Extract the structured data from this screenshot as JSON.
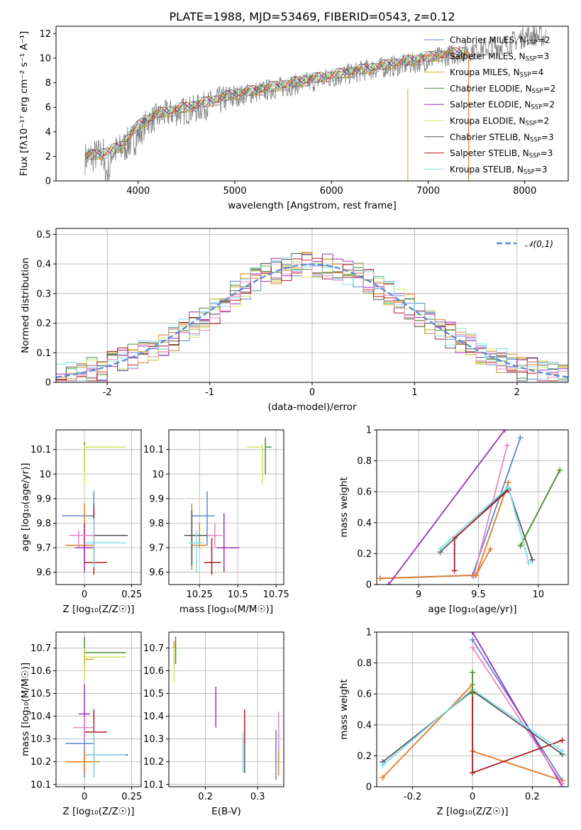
{
  "figure_title": "PLATE=1988, MJD=53469, FIBERID=0543, z=0.12",
  "models": [
    {
      "name": "Chabrier MILES",
      "nssp": "2",
      "color": "#5b86d0"
    },
    {
      "name": "Salpeter MILES",
      "nssp": "3",
      "color": "#e07b27"
    },
    {
      "name": "Kroupa MILES",
      "nssp": "4",
      "color": "#c6a41a"
    },
    {
      "name": "Chabrier ELODIE",
      "nssp": "2",
      "color": "#4a8f3a"
    },
    {
      "name": "Salpeter ELODIE",
      "nssp": "2",
      "color": "#9b30b8"
    },
    {
      "name": "Kroupa ELODIE",
      "nssp": "2",
      "color": "#d6e35a"
    },
    {
      "name": "Chabrier STELIB",
      "nssp": "3",
      "color": "#555555"
    },
    {
      "name": "Salpeter STELIB",
      "nssp": "3",
      "color": "#b01c22"
    },
    {
      "name": "Kroupa STELIB",
      "nssp": "3",
      "color": "#80dde8"
    }
  ],
  "extra_colors": {
    "data": "#808080",
    "pink": "#e986c0",
    "gaussian": "#5b8bd6"
  },
  "chart_data": [
    {
      "id": "spectrum",
      "type": "line",
      "xlabel": "wavelength [Angstrom, rest frame]",
      "ylabel": "Flux [fλ10⁻¹⁷ erg cm⁻² s⁻¹ A⁻¹]",
      "xlim": [
        3150,
        8450
      ],
      "ylim": [
        0,
        12.6
      ],
      "xticks": [
        4000,
        5000,
        6000,
        7000,
        8000
      ],
      "yticks": [
        0,
        2,
        4,
        6,
        8,
        10,
        12
      ],
      "data_series": {
        "name": "data",
        "x": [
          3450,
          3600,
          3800,
          4000,
          4100,
          4300,
          4600,
          4900,
          5200,
          5600,
          6000,
          6400,
          6800,
          7200,
          7500,
          7800,
          8050,
          8200
        ],
        "y": [
          2.0,
          2.3,
          2.6,
          3.8,
          5.0,
          5.6,
          6.0,
          6.8,
          7.3,
          7.9,
          8.5,
          9.2,
          9.6,
          10.3,
          10.8,
          11.2,
          12.0,
          11.8
        ]
      },
      "model_x": [
        3450,
        3600,
        3800,
        4000,
        4200,
        4500,
        4800,
        5000,
        5300,
        5600,
        6000,
        6400,
        6800,
        7100,
        7400
      ],
      "model_y": [
        2.0,
        2.2,
        2.7,
        4.5,
        5.5,
        6.0,
        6.6,
        7.1,
        7.5,
        8.0,
        8.6,
        9.2,
        9.8,
        10.2,
        10.6
      ],
      "grid": false,
      "legend_position": "top-right"
    },
    {
      "id": "residuals",
      "type": "histogram",
      "xlabel": "(data-model)/error",
      "ylabel": "Normed distribution",
      "xlim": [
        -2.5,
        2.5
      ],
      "ylim": [
        0,
        0.52
      ],
      "xticks": [
        -2,
        -1,
        0,
        1,
        2
      ],
      "yticks": [
        0.0,
        0.1,
        0.2,
        0.3,
        0.4,
        0.5
      ],
      "bin_width": 0.1,
      "gaussian_label": "𝒩(0,1)",
      "grid": true,
      "legend_position": "top-right"
    },
    {
      "id": "age-vs-Z",
      "type": "errorbar",
      "xlabel": "Z [log₁₀(Z/Z☉)]",
      "ylabel": "age  [log₁₀(age/yr)]",
      "xlim": [
        -0.15,
        0.3
      ],
      "ylim": [
        9.55,
        10.18
      ],
      "xticks": [
        0.0,
        0.25
      ],
      "yticks": [
        9.6,
        9.7,
        9.8,
        9.9,
        10.0,
        10.1
      ],
      "grid": true,
      "points": [
        {
          "x": 0.05,
          "y": 9.83,
          "xl": 0.17,
          "xh": 0.0,
          "yl": 0.12,
          "yh": 0.1,
          "c": 0
        },
        {
          "x": 0.0,
          "y": 9.71,
          "xl": 0.1,
          "xh": 0.05,
          "yl": 0.1,
          "yh": 0.17,
          "c": 1
        },
        {
          "x": 0.0,
          "y": 9.75,
          "xl": 0.0,
          "xh": 0.05,
          "yl": 0.05,
          "yh": 0.05,
          "c": 2
        },
        {
          "x": 0.0,
          "y": 10.11,
          "xl": 0.0,
          "xh": 0.22,
          "yl": 0.1,
          "yh": 0.02,
          "c": 3
        },
        {
          "x": 0.0,
          "y": 9.7,
          "xl": 0.05,
          "xh": 0.05,
          "yl": 0.1,
          "yh": 0.1,
          "c": 4
        },
        {
          "x": 0.0,
          "y": 10.11,
          "xl": 0.0,
          "xh": 0.22,
          "yl": 0.15,
          "yh": 0.01,
          "c": 5
        },
        {
          "x": 0.05,
          "y": 9.75,
          "xl": 0.05,
          "xh": 0.18,
          "yl": 0.12,
          "yh": 0.13,
          "c": 6
        },
        {
          "x": 0.05,
          "y": 9.64,
          "xl": 0.05,
          "xh": 0.07,
          "yl": 0.05,
          "yh": 0.22,
          "c": 7
        },
        {
          "x": 0.05,
          "y": 9.72,
          "xl": 0.05,
          "xh": 0.17,
          "yl": 0.1,
          "yh": 0.1,
          "c": 8
        },
        {
          "x": -0.03,
          "y": 9.75,
          "xl": 0.05,
          "xh": 0.08,
          "yl": 0.05,
          "yh": 0.02,
          "c": 9
        }
      ]
    },
    {
      "id": "age-vs-mass",
      "type": "errorbar",
      "xlabel": "mass [log₁₀(M/M☉)]",
      "ylabel": "",
      "xlim": [
        10.05,
        10.8
      ],
      "ylim": [
        9.55,
        10.18
      ],
      "xticks": [
        10.25,
        10.5,
        10.75
      ],
      "yticks": [
        9.6,
        9.7,
        9.8,
        9.9,
        10.0,
        10.1
      ],
      "grid": true,
      "points": [
        {
          "x": 10.3,
          "y": 9.83,
          "xl": 0.1,
          "xh": 0.05,
          "yl": 0.12,
          "yh": 0.1,
          "c": 0
        },
        {
          "x": 10.2,
          "y": 9.71,
          "xl": 0.0,
          "xh": 0.1,
          "yl": 0.1,
          "yh": 0.17,
          "c": 1
        },
        {
          "x": 10.25,
          "y": 9.75,
          "xl": 0.05,
          "xh": 0.05,
          "yl": 0.05,
          "yh": 0.05,
          "c": 2
        },
        {
          "x": 10.68,
          "y": 10.11,
          "xl": 0.0,
          "xh": 0.04,
          "yl": 0.11,
          "yh": 0.04,
          "c": 3
        },
        {
          "x": 10.41,
          "y": 9.7,
          "xl": 0.05,
          "xh": 0.1,
          "yl": 0.1,
          "yh": 0.14,
          "c": 4
        },
        {
          "x": 10.66,
          "y": 10.11,
          "xl": 0.1,
          "xh": 0.0,
          "yl": 0.15,
          "yh": 0.01,
          "c": 5
        },
        {
          "x": 10.2,
          "y": 9.75,
          "xl": 0.05,
          "xh": 0.15,
          "yl": 0.12,
          "yh": 0.1,
          "c": 6
        },
        {
          "x": 10.33,
          "y": 9.64,
          "xl": 0.05,
          "xh": 0.06,
          "yl": 0.05,
          "yh": 0.1,
          "c": 7
        },
        {
          "x": 10.23,
          "y": 9.72,
          "xl": 0.05,
          "xh": 0.05,
          "yl": 0.12,
          "yh": 0.05,
          "c": 8
        },
        {
          "x": 10.35,
          "y": 9.75,
          "xl": 0.05,
          "xh": 0.05,
          "yl": 0.05,
          "yh": 0.05,
          "c": 9
        }
      ]
    },
    {
      "id": "weight-vs-age",
      "type": "line",
      "xlabel": "age  [log₁₀(age/yr)]",
      "ylabel": "mass weight",
      "xlim": [
        8.65,
        10.25
      ],
      "ylim": [
        0,
        1.0
      ],
      "xticks": [
        9.0,
        9.5,
        10.0
      ],
      "yticks": [
        0.0,
        0.2,
        0.4,
        0.6,
        0.8,
        1.0
      ],
      "grid": true,
      "series": [
        {
          "c": 0,
          "x": [
            8.68,
            9.45,
            9.85
          ],
          "y": [
            0.04,
            0.06,
            0.95
          ]
        },
        {
          "c": 1,
          "x": [
            8.68,
            9.48,
            9.75
          ],
          "y": [
            0.04,
            0.06,
            0.66
          ]
        },
        {
          "c": 5,
          "x": [
            9.86,
            10.18
          ],
          "y": [
            0.26,
            0.74
          ]
        },
        {
          "c": 3,
          "x": [
            9.85,
            10.18
          ],
          "y": [
            0.25,
            0.74
          ]
        },
        {
          "c": 4,
          "x": [
            8.75,
            9.72
          ],
          "y": [
            0.0,
            1.0
          ]
        },
        {
          "c": 9,
          "x": [
            9.46,
            9.74
          ],
          "y": [
            0.05,
            0.9
          ]
        },
        {
          "c": 6,
          "x": [
            9.18,
            9.75,
            9.95
          ],
          "y": [
            0.21,
            0.62,
            0.16
          ]
        },
        {
          "c": 7,
          "x": [
            9.3,
            9.3,
            9.75
          ],
          "y": [
            0.09,
            0.3,
            0.61
          ]
        },
        {
          "c": 8,
          "x": [
            9.18,
            9.75,
            9.92
          ],
          "y": [
            0.23,
            0.63,
            0.14
          ]
        },
        {
          "c": 1,
          "x": [
            9.48,
            9.6
          ],
          "y": [
            0.06,
            0.23
          ]
        }
      ]
    },
    {
      "id": "mass-vs-Z",
      "type": "errorbar",
      "xlabel": "Z [log₁₀(Z/Z☉)]",
      "ylabel": "mass [log₁₀(M/M☉)]",
      "xlim": [
        -0.15,
        0.3
      ],
      "ylim": [
        10.09,
        10.77
      ],
      "xticks": [
        0.0,
        0.25
      ],
      "yticks": [
        10.1,
        10.2,
        10.3,
        10.4,
        10.5,
        10.6,
        10.7
      ],
      "grid": true,
      "points": [
        {
          "x": 0.0,
          "y": 10.28,
          "xl": 0.1,
          "xh": 0.05,
          "yl": 0.15,
          "yh": 0.05,
          "c": 0
        },
        {
          "x": 0.0,
          "y": 10.2,
          "xl": 0.1,
          "xh": 0.08,
          "yl": 0.05,
          "yh": 0.05,
          "c": 1
        },
        {
          "x": 0.0,
          "y": 10.65,
          "xl": 0.0,
          "xh": 0.05,
          "yl": 0.05,
          "yh": 0.05,
          "c": 2
        },
        {
          "x": 0.0,
          "y": 10.68,
          "xl": 0.0,
          "xh": 0.22,
          "yl": 0.05,
          "yh": 0.07,
          "c": 3
        },
        {
          "x": 0.0,
          "y": 10.41,
          "xl": 0.03,
          "xh": 0.03,
          "yl": 0.1,
          "yh": 0.13,
          "c": 4
        },
        {
          "x": 0.0,
          "y": 10.66,
          "xl": 0.0,
          "xh": 0.22,
          "yl": 0.1,
          "yh": 0.04,
          "c": 5
        },
        {
          "x": 0.05,
          "y": 10.23,
          "xl": 0.05,
          "xh": 0.18,
          "yl": 0.1,
          "yh": 0.07,
          "c": 6
        },
        {
          "x": 0.05,
          "y": 10.33,
          "xl": 0.05,
          "xh": 0.07,
          "yl": 0.05,
          "yh": 0.1,
          "c": 7
        },
        {
          "x": 0.05,
          "y": 10.23,
          "xl": 0.05,
          "xh": 0.17,
          "yl": 0.1,
          "yh": 0.1,
          "c": 8
        },
        {
          "x": 0.0,
          "y": 10.35,
          "xl": 0.06,
          "xh": 0.05,
          "yl": 0.05,
          "yh": 0.05,
          "c": 9
        }
      ]
    },
    {
      "id": "mass-vs-EBV",
      "type": "errorbar",
      "xlabel": "E(B-V)",
      "ylabel": "",
      "xlim": [
        0.13,
        0.35
      ],
      "ylim": [
        10.09,
        10.77
      ],
      "xticks": [
        0.2,
        0.3
      ],
      "yticks": [
        10.1,
        10.2,
        10.3,
        10.4,
        10.5,
        10.6,
        10.7
      ],
      "grid": true,
      "points": [
        {
          "x": 0.335,
          "y": 10.25,
          "xl": 0.0,
          "xh": 0.0,
          "yl": 0.13,
          "yh": 0.09,
          "c": 0
        },
        {
          "x": 0.34,
          "y": 10.25,
          "xl": 0.0,
          "xh": 0.0,
          "yl": 0.11,
          "yh": 0.08,
          "c": 1
        },
        {
          "x": 0.14,
          "y": 10.68,
          "xl": 0.0,
          "xh": 0.0,
          "yl": 0.05,
          "yh": 0.05,
          "c": 2
        },
        {
          "x": 0.143,
          "y": 10.68,
          "xl": 0.0,
          "xh": 0.0,
          "yl": 0.05,
          "yh": 0.07,
          "c": 3
        },
        {
          "x": 0.22,
          "y": 10.44,
          "xl": 0.0,
          "xh": 0.0,
          "yl": 0.09,
          "yh": 0.09,
          "c": 4
        },
        {
          "x": 0.14,
          "y": 10.65,
          "xl": 0.0,
          "xh": 0.0,
          "yl": 0.1,
          "yh": 0.05,
          "c": 5
        },
        {
          "x": 0.275,
          "y": 10.25,
          "xl": 0.0,
          "xh": 0.0,
          "yl": 0.1,
          "yh": 0.07,
          "c": 6
        },
        {
          "x": 0.275,
          "y": 10.33,
          "xl": 0.0,
          "xh": 0.0,
          "yl": 0.05,
          "yh": 0.1,
          "c": 7
        },
        {
          "x": 0.272,
          "y": 10.25,
          "xl": 0.0,
          "xh": 0.0,
          "yl": 0.1,
          "yh": 0.08,
          "c": 8
        },
        {
          "x": 0.34,
          "y": 10.35,
          "xl": 0.0,
          "xh": 0.0,
          "yl": 0.1,
          "yh": 0.07,
          "c": 9
        }
      ]
    },
    {
      "id": "weight-vs-Z",
      "type": "line",
      "xlabel": "Z [log₁₀(Z/Z☉)]",
      "ylabel": "mass weight",
      "xlim": [
        -0.32,
        0.32
      ],
      "ylim": [
        0,
        1.0
      ],
      "xticks": [
        -0.2,
        0.0,
        0.2
      ],
      "yticks": [
        0.0,
        0.2,
        0.4,
        0.6,
        0.8,
        1.0
      ],
      "grid": true,
      "series": [
        {
          "c": 0,
          "x": [
            0.0,
            0.3
          ],
          "y": [
            0.95,
            0.04
          ]
        },
        {
          "c": 1,
          "x": [
            -0.3,
            0.0,
            0.0,
            0.3
          ],
          "y": [
            0.06,
            0.66,
            0.23,
            0.04
          ]
        },
        {
          "c": 4,
          "x": [
            0.0,
            0.3
          ],
          "y": [
            1.0,
            0.0
          ]
        },
        {
          "c": 9,
          "x": [
            0.0,
            0.3
          ],
          "y": [
            0.9,
            0.02
          ]
        },
        {
          "c": 6,
          "x": [
            -0.3,
            0.0,
            0.3
          ],
          "y": [
            0.16,
            0.62,
            0.21
          ]
        },
        {
          "c": 7,
          "x": [
            0.0,
            0.0,
            0.3
          ],
          "y": [
            0.61,
            0.09,
            0.3
          ]
        },
        {
          "c": 8,
          "x": [
            -0.3,
            0.0,
            0.3
          ],
          "y": [
            0.14,
            0.63,
            0.23
          ]
        },
        {
          "c": 5,
          "x": [
            0.0,
            0.0
          ],
          "y": [
            0.74,
            0.62
          ]
        },
        {
          "c": 3,
          "x": [
            0.0,
            0.0
          ],
          "y": [
            0.74,
            0.6
          ]
        }
      ]
    }
  ]
}
